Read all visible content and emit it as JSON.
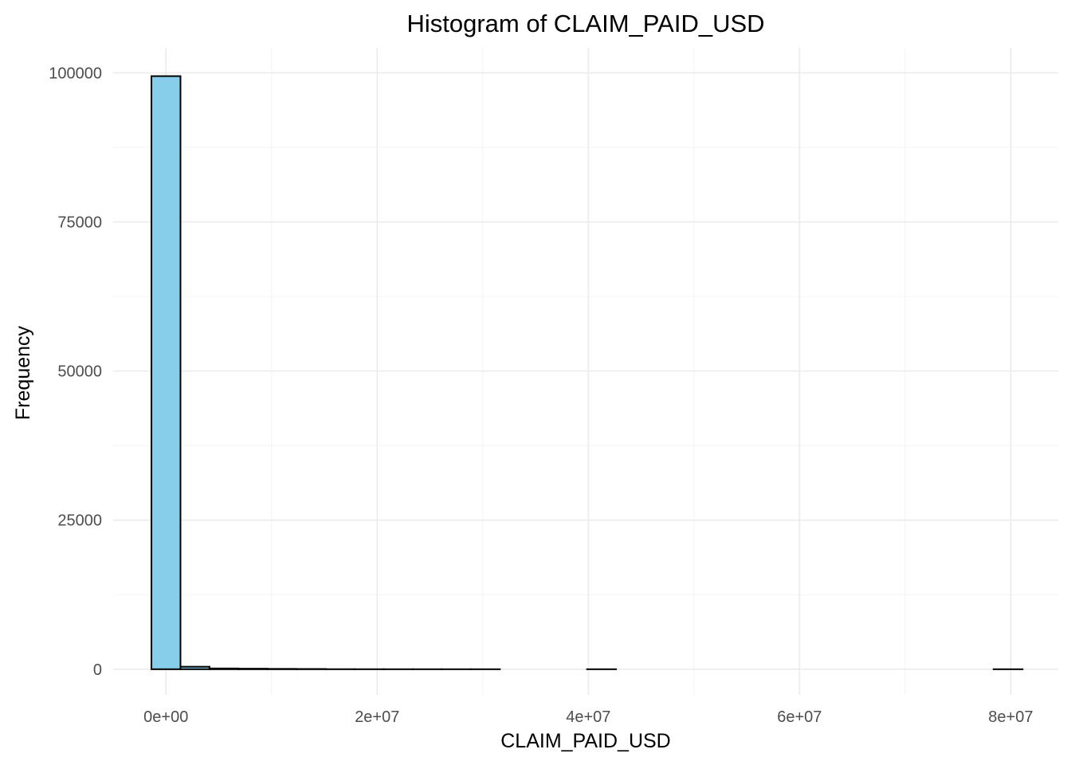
{
  "chart_data": {
    "type": "bar",
    "title": "Histogram of CLAIM_PAID_USD",
    "xlabel": "CLAIM_PAID_USD",
    "ylabel": "Frequency",
    "bin_width": 2750000,
    "bins": [
      {
        "x_min": -1375000,
        "x_max": 1375000,
        "count": 99450
      },
      {
        "x_min": 1375000,
        "x_max": 4125000,
        "count": 420
      },
      {
        "x_min": 4125000,
        "x_max": 6875000,
        "count": 130
      },
      {
        "x_min": 6875000,
        "x_max": 9625000,
        "count": 90
      },
      {
        "x_min": 9625000,
        "x_max": 12375000,
        "count": 60
      },
      {
        "x_min": 12375000,
        "x_max": 15125000,
        "count": 40
      },
      {
        "x_min": 15125000,
        "x_max": 17875000,
        "count": 10
      },
      {
        "x_min": 17875000,
        "x_max": 20625000,
        "count": 5
      },
      {
        "x_min": 20625000,
        "x_max": 23375000,
        "count": 3
      },
      {
        "x_min": 23375000,
        "x_max": 26125000,
        "count": 2
      },
      {
        "x_min": 26125000,
        "x_max": 28875000,
        "count": 1
      },
      {
        "x_min": 28875000,
        "x_max": 31625000,
        "count": 1
      },
      {
        "x_min": 31625000,
        "x_max": 34375000,
        "count": 0
      },
      {
        "x_min": 34375000,
        "x_max": 37125000,
        "count": 0
      },
      {
        "x_min": 37125000,
        "x_max": 39875000,
        "count": 0
      },
      {
        "x_min": 39875000,
        "x_max": 42625000,
        "count": 1
      },
      {
        "x_min": 42625000,
        "x_max": 45375000,
        "count": 0
      },
      {
        "x_min": 45375000,
        "x_max": 48125000,
        "count": 0
      },
      {
        "x_min": 48125000,
        "x_max": 50875000,
        "count": 0
      },
      {
        "x_min": 50875000,
        "x_max": 53625000,
        "count": 0
      },
      {
        "x_min": 53625000,
        "x_max": 56375000,
        "count": 0
      },
      {
        "x_min": 56375000,
        "x_max": 59125000,
        "count": 0
      },
      {
        "x_min": 59125000,
        "x_max": 61875000,
        "count": 0
      },
      {
        "x_min": 61875000,
        "x_max": 64625000,
        "count": 0
      },
      {
        "x_min": 64625000,
        "x_max": 67375000,
        "count": 0
      },
      {
        "x_min": 67375000,
        "x_max": 70125000,
        "count": 0
      },
      {
        "x_min": 70125000,
        "x_max": 72875000,
        "count": 0
      },
      {
        "x_min": 72875000,
        "x_max": 75625000,
        "count": 0
      },
      {
        "x_min": 75625000,
        "x_max": 78375000,
        "count": 0
      },
      {
        "x_min": 78375000,
        "x_max": 81125000,
        "count": 1
      }
    ],
    "xlim": [
      -5000000,
      84500000
    ],
    "ylim": [
      -4300,
      104200
    ],
    "x_ticks": [
      {
        "value": 0,
        "label": "0e+00"
      },
      {
        "value": 20000000,
        "label": "2e+07"
      },
      {
        "value": 40000000,
        "label": "4e+07"
      },
      {
        "value": 60000000,
        "label": "6e+07"
      },
      {
        "value": 80000000,
        "label": "8e+07"
      }
    ],
    "x_minor_ticks": [
      10000000,
      30000000,
      50000000,
      70000000
    ],
    "y_ticks": [
      {
        "value": 0,
        "label": "0"
      },
      {
        "value": 25000,
        "label": "25000"
      },
      {
        "value": 50000,
        "label": "50000"
      },
      {
        "value": 75000,
        "label": "75000"
      },
      {
        "value": 100000,
        "label": "100000"
      }
    ],
    "y_minor_ticks": [
      12500,
      37500,
      62500,
      87500
    ],
    "grid": true,
    "legend": "none",
    "colors": {
      "bar_fill": "#87ceeb",
      "bar_outline": "#000000",
      "grid_major": "#ebebeb",
      "grid_minor": "#f3f3f3",
      "tick_text": "#4d4d4d"
    }
  }
}
